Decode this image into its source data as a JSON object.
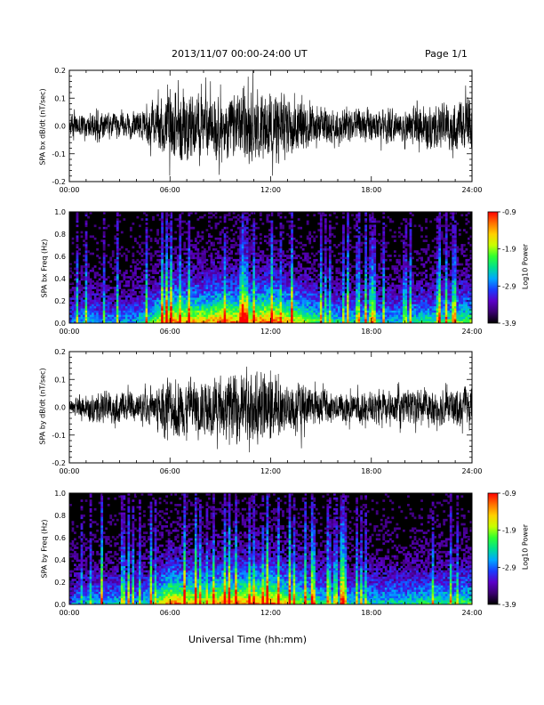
{
  "header": {
    "title": "2013/11/07  00:00-24:00 UT",
    "page": "Page 1/1"
  },
  "footer": {
    "xlabel": "Universal Time (hh:mm)"
  },
  "colors": {
    "trace": "#000000",
    "spectrogram_background": "#000000",
    "colorbar_stops": [
      "#000000",
      "#3a006f",
      "#5b00c8",
      "#1a3cff",
      "#00a8ff",
      "#00e090",
      "#30ff30",
      "#c8ff00",
      "#ffd000",
      "#ff7000",
      "#ff0000"
    ]
  },
  "chart_data": [
    {
      "type": "line",
      "ylabel": "SPA bx dB/dt (nT/sec)",
      "x_ticks": [
        "00:00",
        "06:00",
        "12:00",
        "18:00",
        "24:00"
      ],
      "y_ticks": [
        "-0.2",
        "-0.1",
        "0.0",
        "0.1",
        "0.2"
      ],
      "xlim": [
        0,
        24
      ],
      "ylim": [
        -0.2,
        0.2
      ],
      "envelope_x": [
        0,
        1,
        2,
        3,
        4,
        5,
        6,
        7,
        8,
        9,
        10,
        11,
        12,
        13,
        14,
        15,
        16,
        17,
        18,
        19,
        20,
        21,
        22,
        23,
        24
      ],
      "envelope_amp": [
        0.06,
        0.08,
        0.08,
        0.07,
        0.08,
        0.12,
        0.2,
        0.2,
        0.17,
        0.17,
        0.2,
        0.2,
        0.2,
        0.17,
        0.15,
        0.11,
        0.1,
        0.1,
        0.1,
        0.09,
        0.1,
        0.12,
        0.12,
        0.14,
        0.16
      ]
    },
    {
      "type": "heatmap",
      "ylabel": "SPA bx Freq (Hz)",
      "x_ticks": [
        "00:00",
        "06:00",
        "12:00",
        "18:00",
        "24:00"
      ],
      "y_ticks": [
        "0.0",
        "0.2",
        "0.4",
        "0.6",
        "0.8",
        "1.0"
      ],
      "xlim": [
        0,
        24
      ],
      "ylim": [
        0,
        1
      ],
      "colorbar_label": "Log10 Power",
      "colorbar_ticks": [
        "-0.9",
        "-1.9",
        "-2.9",
        "-3.9"
      ],
      "zlim": [
        -3.9,
        -0.9
      ],
      "activity_x": [
        0,
        1,
        2,
        3,
        4,
        5,
        6,
        7,
        8,
        9,
        10,
        11,
        12,
        13,
        14,
        15,
        16,
        17,
        18,
        19,
        20,
        21,
        22,
        23,
        24
      ],
      "activity": [
        0.3,
        0.4,
        0.35,
        0.35,
        0.4,
        0.55,
        0.85,
        0.8,
        0.75,
        0.85,
        0.8,
        0.8,
        0.9,
        0.75,
        0.65,
        0.5,
        0.45,
        0.45,
        0.45,
        0.4,
        0.45,
        0.5,
        0.5,
        0.55,
        0.6
      ]
    },
    {
      "type": "line",
      "ylabel": "SPA by dB/dt (nT/sec)",
      "x_ticks": [
        "00:00",
        "06:00",
        "12:00",
        "18:00",
        "24:00"
      ],
      "y_ticks": [
        "-0.2",
        "-0.1",
        "0.0",
        "0.1",
        "0.2"
      ],
      "xlim": [
        0,
        24
      ],
      "ylim": [
        -0.2,
        0.2
      ],
      "envelope_x": [
        0,
        1,
        2,
        3,
        4,
        5,
        6,
        7,
        8,
        9,
        10,
        11,
        12,
        13,
        14,
        15,
        16,
        17,
        18,
        19,
        20,
        21,
        22,
        23,
        24
      ],
      "envelope_amp": [
        0.04,
        0.07,
        0.09,
        0.09,
        0.08,
        0.1,
        0.18,
        0.17,
        0.16,
        0.16,
        0.2,
        0.2,
        0.2,
        0.14,
        0.13,
        0.1,
        0.09,
        0.09,
        0.09,
        0.09,
        0.1,
        0.1,
        0.1,
        0.11,
        0.12
      ]
    },
    {
      "type": "heatmap",
      "ylabel": "SPA by Freq (Hz)",
      "x_ticks": [
        "00:00",
        "06:00",
        "12:00",
        "18:00",
        "24:00"
      ],
      "y_ticks": [
        "0.0",
        "0.2",
        "0.4",
        "0.6",
        "0.8",
        "1.0"
      ],
      "xlim": [
        0,
        24
      ],
      "ylim": [
        0,
        1
      ],
      "colorbar_label": "Log10 Power",
      "colorbar_ticks": [
        "-0.9",
        "-1.9",
        "-2.9",
        "-3.9"
      ],
      "zlim": [
        -3.9,
        -0.9
      ],
      "activity_x": [
        0,
        1,
        2,
        3,
        4,
        5,
        6,
        7,
        8,
        9,
        10,
        11,
        12,
        13,
        14,
        15,
        16,
        17,
        18,
        19,
        20,
        21,
        22,
        23,
        24
      ],
      "activity": [
        0.3,
        0.4,
        0.4,
        0.4,
        0.4,
        0.5,
        0.85,
        0.75,
        0.7,
        0.8,
        0.8,
        0.8,
        0.85,
        0.7,
        0.6,
        0.5,
        0.45,
        0.45,
        0.45,
        0.45,
        0.45,
        0.5,
        0.5,
        0.5,
        0.55
      ]
    }
  ]
}
